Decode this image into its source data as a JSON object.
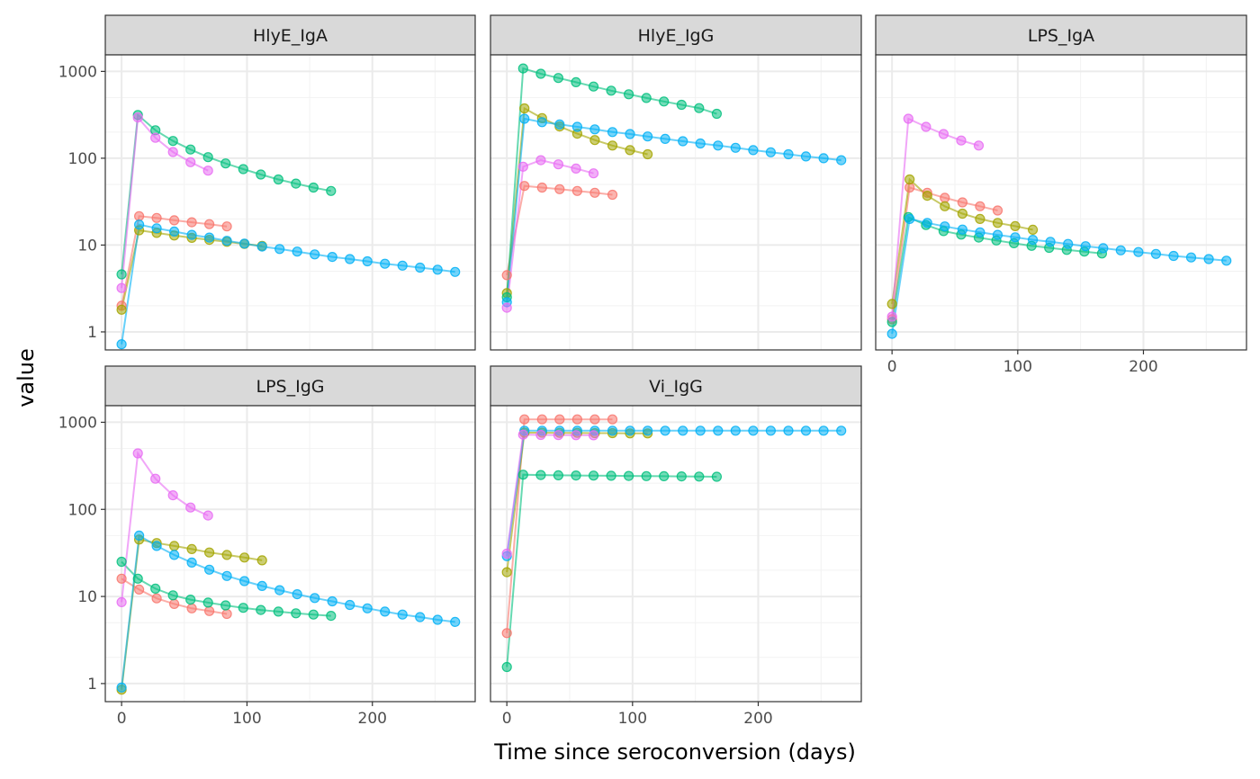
{
  "chart_data": {
    "type": "line",
    "xlabel": "Time since seroconversion (days)",
    "ylabel": "value",
    "y_scale": "log10",
    "ylim": [
      0.62,
      1550
    ],
    "xlim": [
      -13,
      282
    ],
    "y_ticks": [
      1,
      10,
      100,
      1000
    ],
    "y_tick_labels": [
      "1",
      "10",
      "100",
      "1000"
    ],
    "x_ticks": [
      0,
      100,
      200
    ],
    "x_tick_labels": [
      "0",
      "100",
      "200"
    ],
    "grid": true,
    "theme": "bw",
    "legend": "none",
    "series_colors": [
      "#F8766D",
      "#A3A500",
      "#00BF7D",
      "#00B0F6",
      "#E76BF3"
    ],
    "panels": [
      {
        "title": "HlyE_IgA",
        "series": [
          {
            "color": "#F8766D",
            "x": [
              0,
              14,
              28,
              42,
              56,
              70,
              84
            ],
            "y": [
              2.0,
              21.5,
              20.5,
              19.3,
              18.3,
              17.4,
              16.4
            ]
          },
          {
            "color": "#A3A500",
            "x": [
              0,
              14,
              28,
              42,
              56,
              70,
              84,
              98,
              112
            ],
            "y": [
              1.8,
              14.8,
              13.8,
              12.9,
              12.1,
              11.5,
              10.9,
              10.3,
              9.8
            ]
          },
          {
            "color": "#00BF7D",
            "x": [
              0,
              13,
              27,
              41,
              55,
              69,
              83,
              97,
              111,
              125,
              139,
              153,
              167
            ],
            "y": [
              4.6,
              315,
              210,
              158,
              126,
              103,
              87,
              75,
              65,
              57,
              51,
              46,
              42
            ]
          },
          {
            "color": "#00B0F6",
            "x": [
              0,
              14,
              28,
              42,
              56,
              70,
              84,
              98,
              112,
              126,
              140,
              154,
              168,
              182,
              196,
              210,
              224,
              238,
              252,
              266
            ],
            "y": [
              0.72,
              17.2,
              15.6,
              14.3,
              13.1,
              12.2,
              11.2,
              10.4,
              9.6,
              9.0,
              8.4,
              7.8,
              7.3,
              6.9,
              6.5,
              6.1,
              5.8,
              5.5,
              5.2,
              4.9
            ]
          },
          {
            "color": "#E76BF3",
            "x": [
              0,
              13,
              27,
              41,
              55,
              69
            ],
            "y": [
              3.2,
              295,
              172,
              118,
              90,
              72
            ]
          }
        ]
      },
      {
        "title": "HlyE_IgG",
        "series": [
          {
            "color": "#F8766D",
            "x": [
              0,
              14,
              28,
              42,
              56,
              70,
              84
            ],
            "y": [
              4.5,
              48,
              46,
              44,
              42,
              40,
              38
            ]
          },
          {
            "color": "#A3A500",
            "x": [
              0,
              14,
              28,
              42,
              56,
              70,
              84,
              98,
              112
            ],
            "y": [
              2.8,
              375,
              290,
              232,
              192,
              162,
              140,
              124,
              111
            ]
          },
          {
            "color": "#00BF7D",
            "x": [
              0,
              13,
              27,
              41,
              55,
              69,
              83,
              97,
              111,
              125,
              139,
              153,
              167
            ],
            "y": [
              2.5,
              1080,
              940,
              840,
              750,
              670,
              600,
              545,
              495,
              450,
              412,
              378,
              325
            ]
          },
          {
            "color": "#00B0F6",
            "x": [
              0,
              14,
              28,
              42,
              56,
              70,
              84,
              98,
              112,
              126,
              140,
              154,
              168,
              182,
              196,
              210,
              224,
              238,
              252,
              266
            ],
            "y": [
              2.2,
              285,
              260,
              245,
              230,
              215,
              200,
              190,
              178,
              167,
              157,
              148,
              140,
              132,
              124,
              117,
              111,
              105,
              100,
              95
            ]
          },
          {
            "color": "#E76BF3",
            "x": [
              0,
              13,
              27,
              41,
              55,
              69
            ],
            "y": [
              1.9,
              80,
              95,
              85,
              76,
              67
            ]
          }
        ]
      },
      {
        "title": "LPS_IgA",
        "series": [
          {
            "color": "#F8766D",
            "x": [
              0,
              14,
              28,
              42,
              56,
              70,
              84
            ],
            "y": [
              1.4,
              46,
              40,
              35,
              31,
              28,
              25
            ]
          },
          {
            "color": "#A3A500",
            "x": [
              0,
              14,
              28,
              42,
              56,
              70,
              84,
              98,
              112
            ],
            "y": [
              2.1,
              57,
              37,
              28,
              23,
              20,
              18,
              16.5,
              15
            ]
          },
          {
            "color": "#00BF7D",
            "x": [
              0,
              13,
              27,
              41,
              55,
              69,
              83,
              97,
              111,
              125,
              139,
              153,
              167
            ],
            "y": [
              1.3,
              21,
              17,
              14.5,
              13.2,
              12.2,
              11.3,
              10.5,
              9.8,
              9.3,
              8.8,
              8.4,
              8.0
            ]
          },
          {
            "color": "#00B0F6",
            "x": [
              0,
              14,
              28,
              42,
              56,
              70,
              84,
              98,
              112,
              126,
              140,
              154,
              168,
              182,
              196,
              210,
              224,
              238,
              252,
              266
            ],
            "y": [
              0.95,
              20,
              18,
              16.4,
              15.1,
              14.0,
              13.1,
              12.3,
              11.5,
              10.9,
              10.3,
              9.7,
              9.2,
              8.7,
              8.3,
              7.9,
              7.5,
              7.2,
              6.9,
              6.6
            ]
          },
          {
            "color": "#E76BF3",
            "x": [
              0,
              13,
              27,
              41,
              55,
              69
            ],
            "y": [
              1.5,
              285,
              230,
              190,
              160,
              140
            ]
          }
        ]
      },
      {
        "title": "LPS_IgG",
        "series": [
          {
            "color": "#F8766D",
            "x": [
              0,
              14,
              28,
              42,
              56,
              70,
              84
            ],
            "y": [
              16,
              12,
              9.5,
              8.2,
              7.3,
              6.8,
              6.3
            ]
          },
          {
            "color": "#A3A500",
            "x": [
              0,
              14,
              28,
              42,
              56,
              70,
              84,
              98,
              112
            ],
            "y": [
              0.85,
              45,
              41,
              38,
              35,
              32,
              30,
              28,
              26
            ]
          },
          {
            "color": "#00BF7D",
            "x": [
              0,
              13,
              27,
              41,
              55,
              69,
              83,
              97,
              111,
              125,
              139,
              153,
              167
            ],
            "y": [
              25,
              16,
              12.3,
              10.3,
              9.2,
              8.5,
              7.9,
              7.4,
              7.0,
              6.7,
              6.4,
              6.2,
              6.0
            ]
          },
          {
            "color": "#00B0F6",
            "x": [
              0,
              14,
              28,
              42,
              56,
              70,
              84,
              98,
              112,
              126,
              140,
              154,
              168,
              182,
              196,
              210,
              224,
              238,
              252,
              266
            ],
            "y": [
              0.9,
              50,
              38,
              30,
              24.5,
              20.3,
              17.2,
              15.0,
              13.2,
              11.8,
              10.6,
              9.6,
              8.8,
              8.0,
              7.3,
              6.7,
              6.2,
              5.8,
              5.4,
              5.1
            ]
          },
          {
            "color": "#E76BF3",
            "x": [
              0,
              13,
              27,
              41,
              55,
              69
            ],
            "y": [
              8.6,
              440,
              225,
              145,
              105,
              85
            ]
          }
        ]
      },
      {
        "title": "Vi_IgG",
        "series": [
          {
            "color": "#F8766D",
            "x": [
              0,
              14,
              28,
              42,
              56,
              70,
              84
            ],
            "y": [
              3.8,
              1080,
              1080,
              1080,
              1080,
              1080,
              1080
            ]
          },
          {
            "color": "#A3A500",
            "x": [
              0,
              14,
              28,
              42,
              56,
              70,
              84,
              98,
              112
            ],
            "y": [
              19,
              760,
              760,
              755,
              755,
              750,
              750,
              745,
              745
            ]
          },
          {
            "color": "#00BF7D",
            "x": [
              0,
              13,
              27,
              41,
              55,
              69,
              83,
              97,
              111,
              125,
              139,
              153,
              167
            ],
            "y": [
              1.55,
              250,
              248,
              246,
              245,
              244,
              243,
              242,
              241,
              240,
              239,
              238,
              237
            ]
          },
          {
            "color": "#00B0F6",
            "x": [
              0,
              14,
              28,
              42,
              56,
              70,
              84,
              98,
              112,
              126,
              140,
              154,
              168,
              182,
              196,
              210,
              224,
              238,
              252,
              266
            ],
            "y": [
              29,
              800,
              800,
              800,
              800,
              800,
              800,
              800,
              800,
              800,
              800,
              800,
              800,
              800,
              800,
              800,
              800,
              800,
              800,
              800
            ]
          },
          {
            "color": "#E76BF3",
            "x": [
              0,
              13,
              27,
              41,
              55,
              69
            ],
            "y": [
              31,
              720,
              715,
              712,
              710,
              708
            ]
          }
        ]
      }
    ]
  }
}
